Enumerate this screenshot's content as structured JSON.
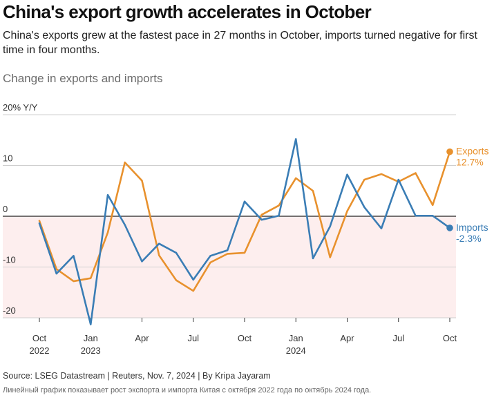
{
  "title": "China's export growth accelerates in October",
  "subtitle": "China's exports grew at the fastest pace in 27 months in October, imports turned negative for first time in four months.",
  "chart_heading": "Change in exports and imports",
  "source": "Source: LSEG Datastream | Reuters, Nov. 7, 2024 | By Kripa Jayaram",
  "description": "Линейный график показывает рост экспорта и импорта Китая с октября 2022 года по октябрь 2024 года.",
  "colors": {
    "exports": "#e8912d",
    "imports": "#3a7db5",
    "negative_band": "#fdeeee"
  },
  "chart_data": {
    "type": "line",
    "title": "Change in exports and imports",
    "ylabel": "% Y/Y",
    "ylim": [
      -20,
      20
    ],
    "y_ticks": [
      {
        "value": 20,
        "label": "20% Y/Y"
      },
      {
        "value": 10,
        "label": "10"
      },
      {
        "value": 0,
        "label": "0"
      },
      {
        "value": -10,
        "label": "-10"
      },
      {
        "value": -20,
        "label": "-20"
      }
    ],
    "x_ticks": [
      {
        "index": 0,
        "label": "Oct",
        "sub": "2022"
      },
      {
        "index": 3,
        "label": "Jan",
        "sub": "2023"
      },
      {
        "index": 6,
        "label": "Apr",
        "sub": ""
      },
      {
        "index": 9,
        "label": "Jul",
        "sub": ""
      },
      {
        "index": 12,
        "label": "Oct",
        "sub": ""
      },
      {
        "index": 15,
        "label": "Jan",
        "sub": "2024"
      },
      {
        "index": 18,
        "label": "Apr",
        "sub": ""
      },
      {
        "index": 21,
        "label": "Jul",
        "sub": ""
      },
      {
        "index": 24,
        "label": "Oct",
        "sub": ""
      }
    ],
    "x": [
      "Oct 2022",
      "Nov 2022",
      "Dec 2022",
      "Jan 2023",
      "Feb 2023",
      "Mar 2023",
      "Apr 2023",
      "May 2023",
      "Jun 2023",
      "Jul 2023",
      "Aug 2023",
      "Sep 2023",
      "Oct 2023",
      "Nov 2023",
      "Dec 2023",
      "Jan 2024",
      "Feb 2024",
      "Mar 2024",
      "Apr 2024",
      "May 2024",
      "Jun 2024",
      "Jul 2024",
      "Aug 2024",
      "Sep 2024",
      "Oct 2024"
    ],
    "series": [
      {
        "name": "Exports",
        "end_label": "12.7%",
        "values": [
          -0.9,
          -10.4,
          -12.8,
          -12.2,
          -3.2,
          10.6,
          7.0,
          -7.7,
          -12.6,
          -14.7,
          -9.1,
          -7.4,
          -7.2,
          0.3,
          2.1,
          7.5,
          5.0,
          -8.1,
          1.0,
          7.2,
          8.3,
          6.8,
          8.5,
          2.2,
          12.7
        ]
      },
      {
        "name": "Imports",
        "end_label": "-2.3%",
        "values": [
          -1.4,
          -11.3,
          -7.8,
          -21.3,
          4.2,
          -1.7,
          -8.9,
          -5.4,
          -7.2,
          -12.5,
          -7.8,
          -6.7,
          2.9,
          -0.7,
          0.1,
          15.2,
          -8.3,
          -2.0,
          8.2,
          1.8,
          -2.4,
          7.2,
          0.1,
          0.1,
          -2.3
        ]
      }
    ]
  }
}
